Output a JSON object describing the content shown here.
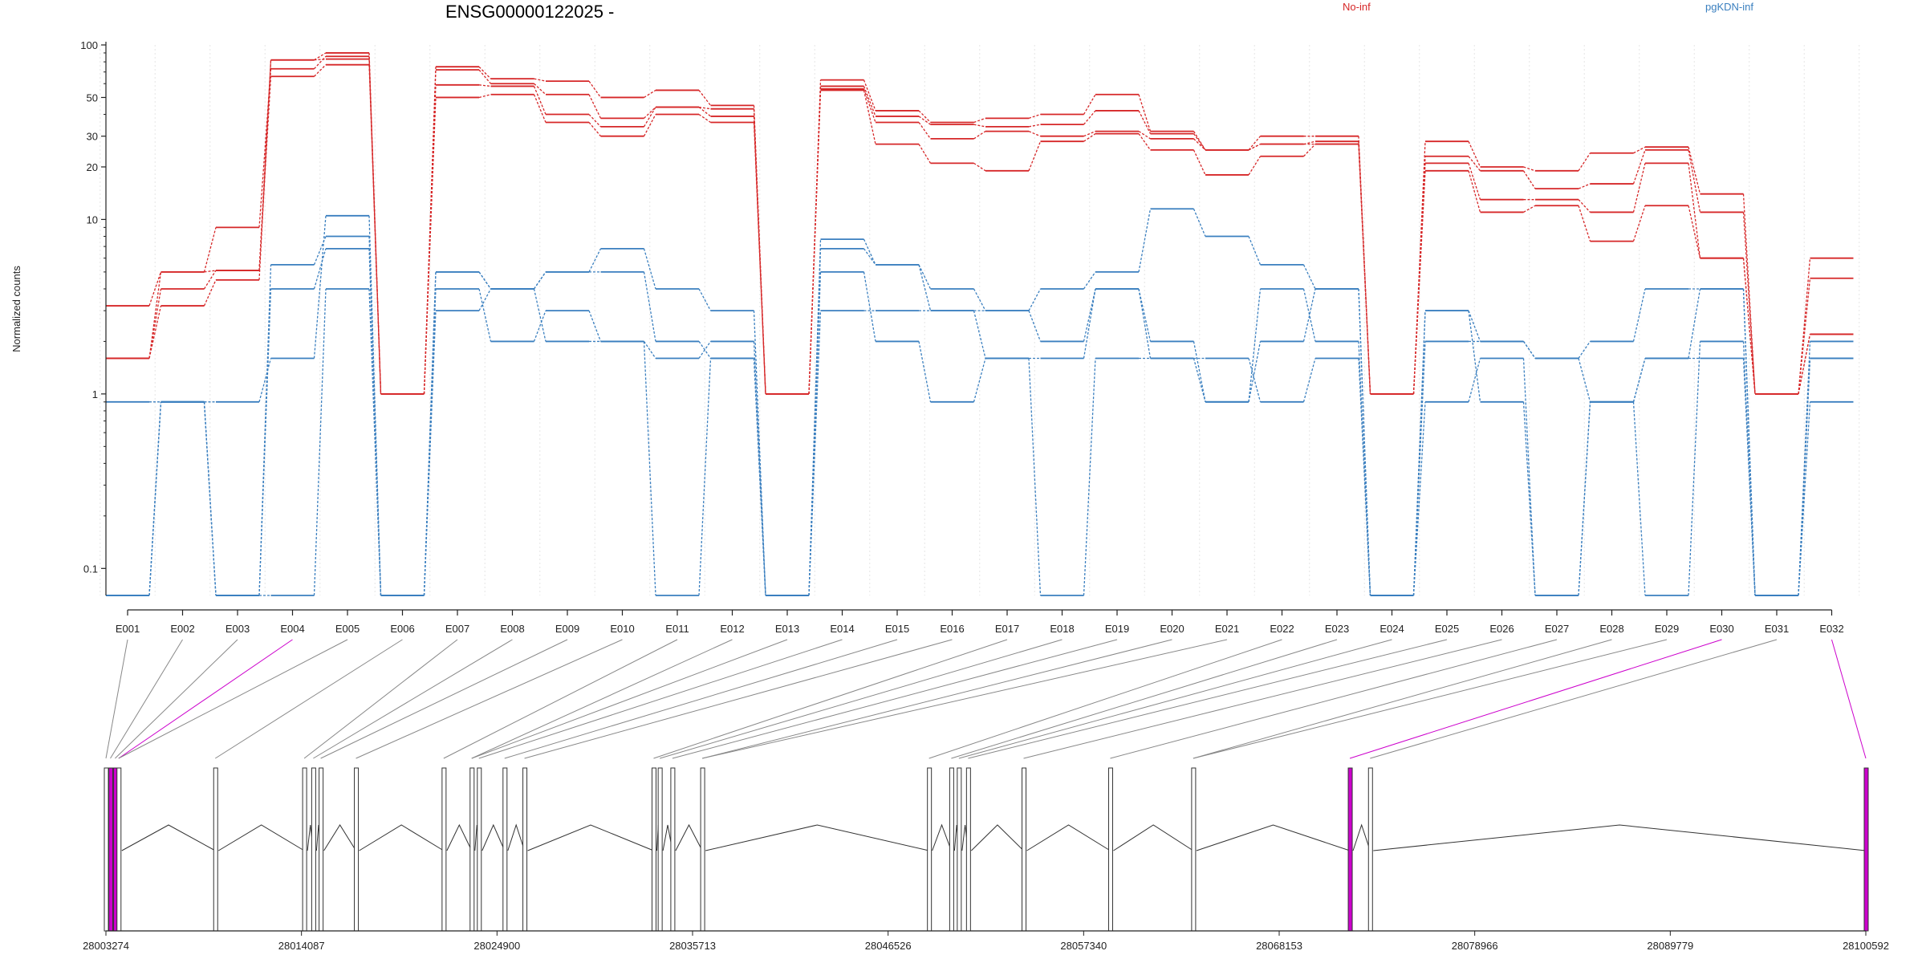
{
  "header": {
    "title": "ENSG00000122025 -",
    "ylabel": "Normalized counts"
  },
  "legend": [
    {
      "name": "No-inf",
      "color": "#d62728"
    },
    {
      "name": "pgKDN-inf",
      "color": "#3a7fbf"
    }
  ],
  "chart_data": {
    "type": "line",
    "yscale": "log",
    "ylim": [
      0.07,
      100
    ],
    "yticks": [
      "100",
      "50",
      "30",
      "20",
      "10",
      "1",
      "0.1"
    ],
    "ytick_values": [
      100,
      50,
      30,
      20,
      10,
      1,
      0.1
    ],
    "categories": [
      "E001",
      "E002",
      "E003",
      "E004",
      "E005",
      "E006",
      "E007",
      "E008",
      "E009",
      "E010",
      "E011",
      "E012",
      "E013",
      "E014",
      "E015",
      "E016",
      "E017",
      "E018",
      "E019",
      "E020",
      "E021",
      "E022",
      "E023",
      "E024",
      "E025",
      "E026",
      "E027",
      "E028",
      "E029",
      "E030",
      "E031",
      "E032"
    ],
    "series": [
      {
        "group": "No-inf",
        "color": "#d62728",
        "values": [
          3.2,
          5.0,
          5.1,
          82,
          90,
          1,
          75,
          64,
          62,
          50,
          55,
          45,
          1,
          63,
          42,
          36,
          38,
          40,
          52,
          32,
          25,
          30,
          30,
          1,
          28,
          20,
          19,
          24,
          26,
          14,
          1,
          6.0
        ]
      },
      {
        "group": "No-inf",
        "color": "#d62728",
        "values": [
          1.6,
          5.0,
          9.0,
          73,
          86,
          1,
          72,
          60,
          52,
          38,
          44,
          43,
          1,
          58,
          39,
          35,
          34,
          35,
          42,
          31,
          25,
          27,
          28,
          1,
          23,
          19,
          15,
          16,
          25,
          11,
          1,
          4.6
        ]
      },
      {
        "group": "No-inf",
        "color": "#d62728",
        "values": [
          1.6,
          3.2,
          4.5,
          82,
          83,
          1,
          59,
          58,
          40,
          34,
          44,
          39,
          1,
          56,
          36,
          29,
          32,
          30,
          32,
          29,
          25,
          27,
          27,
          1,
          21,
          13,
          13,
          11,
          21,
          6.0,
          1,
          2.2
        ]
      },
      {
        "group": "No-inf",
        "color": "#d62728",
        "values": [
          1.6,
          4.0,
          5.1,
          66,
          77,
          1,
          50,
          52,
          36,
          30,
          40,
          36,
          1,
          55,
          27,
          21,
          19,
          28,
          31,
          25,
          18,
          23,
          27,
          1,
          19,
          11,
          12,
          7.5,
          12,
          6.0,
          1,
          2.2
        ]
      },
      {
        "group": "pgKDN-inf",
        "color": "#3a7fbf",
        "values": [
          0.9,
          0.9,
          0.9,
          1.6,
          10.5,
          0.07,
          5.0,
          4.0,
          5.0,
          6.8,
          4.0,
          3.0,
          0.07,
          7.7,
          5.5,
          4.0,
          3.0,
          4.0,
          5.0,
          11.5,
          8.0,
          5.5,
          4.0,
          0.07,
          3.0,
          2.0,
          1.6,
          0.9,
          1.6,
          1.6,
          0.07,
          2.0
        ]
      },
      {
        "group": "pgKDN-inf",
        "color": "#3a7fbf",
        "values": [
          0.07,
          0.9,
          0.07,
          5.5,
          8.0,
          0.07,
          5.0,
          4.0,
          5.0,
          5.0,
          2.0,
          1.6,
          0.07,
          6.8,
          5.5,
          3.0,
          3.0,
          2.0,
          4.0,
          2.0,
          0.9,
          4.0,
          2.0,
          0.07,
          2.0,
          2.0,
          1.6,
          2.0,
          4.0,
          4.0,
          0.07,
          1.6
        ]
      },
      {
        "group": "pgKDN-inf",
        "color": "#3a7fbf",
        "values": [
          0.07,
          0.9,
          0.07,
          4.0,
          6.8,
          0.07,
          4.0,
          2.0,
          3.0,
          2.0,
          0.07,
          1.6,
          0.07,
          5.0,
          2.0,
          0.9,
          1.6,
          1.6,
          4.0,
          1.6,
          1.6,
          0.9,
          1.6,
          0.07,
          0.9,
          1.6,
          0.07,
          0.9,
          0.07,
          2.0,
          0.07,
          0.9
        ]
      },
      {
        "group": "pgKDN-inf",
        "color": "#3a7fbf",
        "values": [
          0.07,
          0.9,
          0.07,
          0.07,
          4.0,
          0.07,
          3.0,
          4.0,
          2.0,
          2.0,
          1.6,
          2.0,
          0.07,
          3.0,
          3.0,
          3.0,
          1.6,
          0.07,
          1.6,
          1.6,
          0.9,
          2.0,
          4.0,
          0.07,
          3.0,
          0.9,
          0.07,
          0.9,
          1.6,
          4.0,
          0.07,
          1.6
        ]
      }
    ]
  },
  "gene_model": {
    "coord_labels": [
      "28003274",
      "28014087",
      "28024900",
      "28035713",
      "28046526",
      "28057340",
      "28068153",
      "28078966",
      "28089779",
      "28100592"
    ],
    "genome_start": 28003274,
    "genome_end": 28100592,
    "exon_starts": [
      28003274,
      28003520,
      28003780,
      28003974,
      28009320,
      28014240,
      28014740,
      28015150,
      28017100,
      28021950,
      28023500,
      28023900,
      28025320,
      28026420,
      28033560,
      28033900,
      28034600,
      28036250,
      28048790,
      28050020,
      28050440,
      28050950,
      28054020,
      28058810,
      28063400,
      28072060,
      28073180,
      28100592
    ],
    "highlight_exons": [
      1,
      2,
      25,
      27
    ],
    "highlight_color": "#cc00cc"
  }
}
